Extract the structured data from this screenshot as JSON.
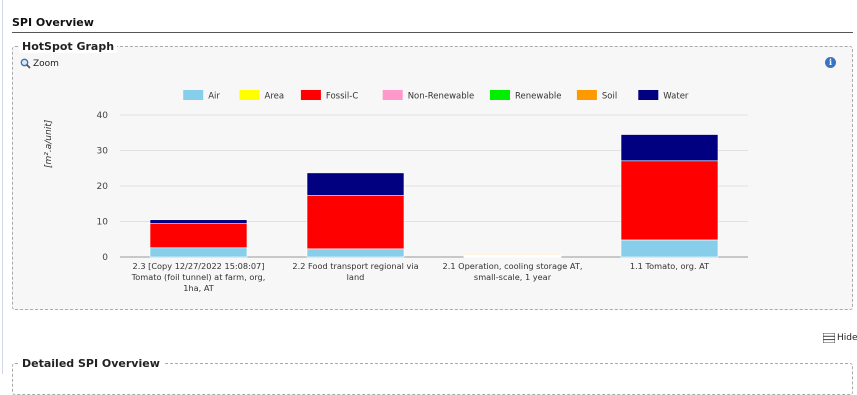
{
  "page_title": "SPI Overview",
  "hotspot": {
    "legend": "HotSpot Graph",
    "zoom_label": "Zoom",
    "zoom_icon": "magnifier-icon",
    "info_icon": "info-icon"
  },
  "hide_label": "Hide",
  "hide_icon": "list-icon",
  "detail": {
    "legend": "Detailed SPI Overview"
  },
  "chart_data": {
    "type": "bar",
    "stacked": true,
    "ylabel": "[m².a/unit]",
    "ylim": [
      0,
      40
    ],
    "yticks": [
      0,
      10,
      20,
      30,
      40
    ],
    "grid": true,
    "legend_position": "top",
    "categories": [
      [
        "2.3 [Copy 12/27/2022 15:08:07]",
        "Tomato (foil tunnel) at farm, org,",
        "1ha, AT"
      ],
      [
        "2.2 Food transport regional via",
        "land"
      ],
      [
        "2.1 Operation, cooling storage AT,",
        "small-scale, 1 year"
      ],
      [
        "1.1 Tomato, org. AT"
      ]
    ],
    "series": [
      {
        "name": "Air",
        "color": "#87CEEB",
        "values": [
          2.6,
          2.3,
          0.1,
          4.8
        ]
      },
      {
        "name": "Area",
        "color": "#FFFF00",
        "values": [
          0,
          0,
          0.1,
          0
        ]
      },
      {
        "name": "Fossil-C",
        "color": "#FF0000",
        "values": [
          6.8,
          15.0,
          0.2,
          22.3
        ]
      },
      {
        "name": "Non-Renewable",
        "color": "#FF99CC",
        "values": [
          0,
          0,
          0.1,
          0
        ]
      },
      {
        "name": "Renewable",
        "color": "#00EE00",
        "values": [
          0,
          0,
          0,
          0
        ]
      },
      {
        "name": "Soil",
        "color": "#FF9900",
        "values": [
          0,
          0,
          0.2,
          0
        ]
      },
      {
        "name": "Water",
        "color": "#000080",
        "values": [
          1.1,
          6.4,
          0,
          7.4
        ]
      }
    ]
  }
}
